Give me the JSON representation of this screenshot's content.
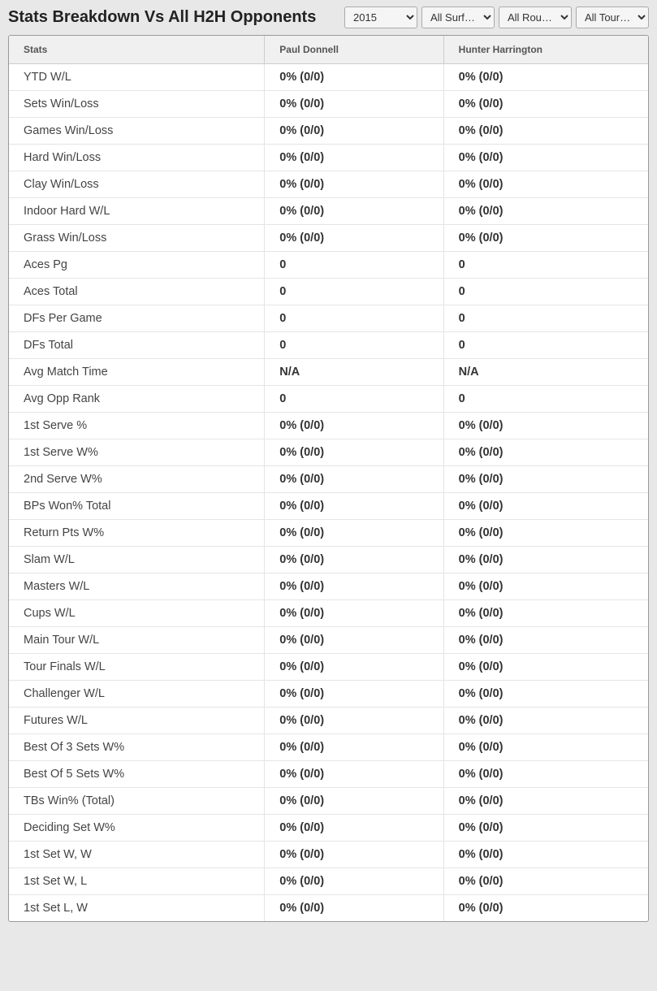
{
  "header": {
    "title": "Stats Breakdown Vs All H2H Opponents"
  },
  "filters": {
    "year": "2015",
    "surface": "All Surf…",
    "round": "All Rou…",
    "tour": "All Tour…"
  },
  "table": {
    "columns": {
      "stats": "Stats",
      "player1": "Paul Donnell",
      "player2": "Hunter Harrington"
    },
    "rows": [
      {
        "label": "YTD W/L",
        "p1": "0% (0/0)",
        "p2": "0% (0/0)"
      },
      {
        "label": "Sets Win/Loss",
        "p1": "0% (0/0)",
        "p2": "0% (0/0)"
      },
      {
        "label": "Games Win/Loss",
        "p1": "0% (0/0)",
        "p2": "0% (0/0)"
      },
      {
        "label": "Hard Win/Loss",
        "p1": "0% (0/0)",
        "p2": "0% (0/0)"
      },
      {
        "label": "Clay Win/Loss",
        "p1": "0% (0/0)",
        "p2": "0% (0/0)"
      },
      {
        "label": "Indoor Hard W/L",
        "p1": "0% (0/0)",
        "p2": "0% (0/0)"
      },
      {
        "label": "Grass Win/Loss",
        "p1": "0% (0/0)",
        "p2": "0% (0/0)"
      },
      {
        "label": "Aces Pg",
        "p1": "0",
        "p2": "0"
      },
      {
        "label": "Aces Total",
        "p1": "0",
        "p2": "0"
      },
      {
        "label": "DFs Per Game",
        "p1": "0",
        "p2": "0"
      },
      {
        "label": "DFs Total",
        "p1": "0",
        "p2": "0"
      },
      {
        "label": "Avg Match Time",
        "p1": "N/A",
        "p2": "N/A"
      },
      {
        "label": "Avg Opp Rank",
        "p1": "0",
        "p2": "0"
      },
      {
        "label": "1st Serve %",
        "p1": "0% (0/0)",
        "p2": "0% (0/0)"
      },
      {
        "label": "1st Serve W%",
        "p1": "0% (0/0)",
        "p2": "0% (0/0)"
      },
      {
        "label": "2nd Serve W%",
        "p1": "0% (0/0)",
        "p2": "0% (0/0)"
      },
      {
        "label": "BPs Won% Total",
        "p1": "0% (0/0)",
        "p2": "0% (0/0)"
      },
      {
        "label": "Return Pts W%",
        "p1": "0% (0/0)",
        "p2": "0% (0/0)"
      },
      {
        "label": "Slam W/L",
        "p1": "0% (0/0)",
        "p2": "0% (0/0)"
      },
      {
        "label": "Masters W/L",
        "p1": "0% (0/0)",
        "p2": "0% (0/0)"
      },
      {
        "label": "Cups W/L",
        "p1": "0% (0/0)",
        "p2": "0% (0/0)"
      },
      {
        "label": "Main Tour W/L",
        "p1": "0% (0/0)",
        "p2": "0% (0/0)"
      },
      {
        "label": "Tour Finals W/L",
        "p1": "0% (0/0)",
        "p2": "0% (0/0)"
      },
      {
        "label": "Challenger W/L",
        "p1": "0% (0/0)",
        "p2": "0% (0/0)"
      },
      {
        "label": "Futures W/L",
        "p1": "0% (0/0)",
        "p2": "0% (0/0)"
      },
      {
        "label": "Best Of 3 Sets W%",
        "p1": "0% (0/0)",
        "p2": "0% (0/0)"
      },
      {
        "label": "Best Of 5 Sets W%",
        "p1": "0% (0/0)",
        "p2": "0% (0/0)"
      },
      {
        "label": "TBs Win% (Total)",
        "p1": "0% (0/0)",
        "p2": "0% (0/0)"
      },
      {
        "label": "Deciding Set W%",
        "p1": "0% (0/0)",
        "p2": "0% (0/0)"
      },
      {
        "label": "1st Set W, W",
        "p1": "0% (0/0)",
        "p2": "0% (0/0)"
      },
      {
        "label": "1st Set W, L",
        "p1": "0% (0/0)",
        "p2": "0% (0/0)"
      },
      {
        "label": "1st Set L, W",
        "p1": "0% (0/0)",
        "p2": "0% (0/0)"
      }
    ]
  },
  "styling": {
    "background_color": "#e8e8e8",
    "table_bg": "#ffffff",
    "header_bg": "#f0f0f0",
    "border_color": "#999999",
    "row_border": "#e5e5e5",
    "title_fontsize": 20,
    "th_fontsize": 12,
    "td_fontsize": 14.5,
    "title_color": "#222222",
    "th_color": "#555555",
    "td_color": "#333333"
  }
}
